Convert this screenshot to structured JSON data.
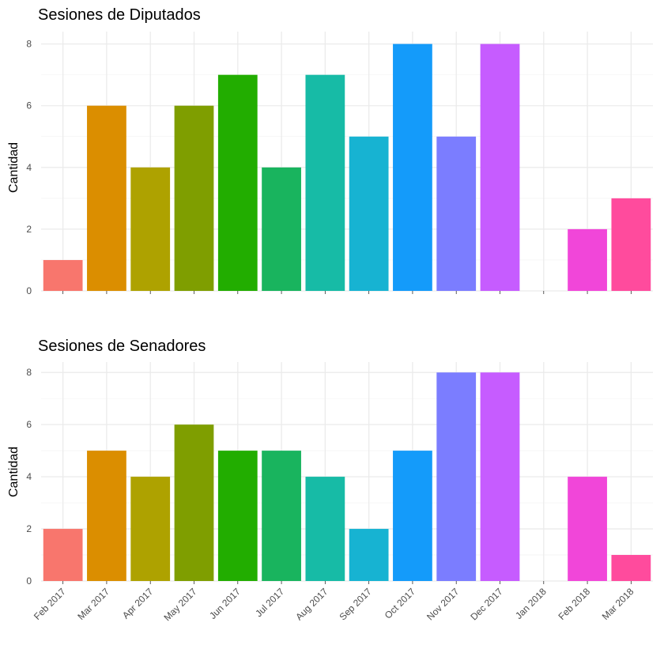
{
  "chart_data": [
    {
      "type": "bar",
      "title": "Sesiones de Diputados",
      "ylabel": "Cantidad",
      "xlabel": "",
      "categories": [
        "Feb 2017",
        "Mar 2017",
        "Apr 2017",
        "May 2017",
        "Jun 2017",
        "Jul 2017",
        "Aug 2017",
        "Sep 2017",
        "Oct 2017",
        "Nov 2017",
        "Dec 2017",
        "Jan 2018",
        "Feb 2018",
        "Mar 2018"
      ],
      "values": [
        1,
        6,
        4,
        6,
        7,
        4,
        7,
        5,
        8,
        5,
        8,
        0,
        2,
        3
      ],
      "ylim": [
        0,
        8.4
      ],
      "yticks": [
        0,
        2,
        4,
        6,
        8
      ],
      "show_xtick_labels": false,
      "grid": true
    },
    {
      "type": "bar",
      "title": "Sesiones de Senadores",
      "ylabel": "Cantidad",
      "xlabel": "",
      "categories": [
        "Feb 2017",
        "Mar 2017",
        "Apr 2017",
        "May 2017",
        "Jun 2017",
        "Jul 2017",
        "Aug 2017",
        "Sep 2017",
        "Oct 2017",
        "Nov 2017",
        "Dec 2017",
        "Jan 2018",
        "Feb 2018",
        "Mar 2018"
      ],
      "values": [
        2,
        5,
        4,
        6,
        5,
        5,
        4,
        2,
        5,
        8,
        8,
        0,
        4,
        1
      ],
      "ylim": [
        0,
        8.4
      ],
      "yticks": [
        0,
        2,
        4,
        6,
        8
      ],
      "show_xtick_labels": true,
      "grid": true
    }
  ],
  "colors": [
    "#F8766D",
    "#DB8E00",
    "#AEA200",
    "#7F9E00",
    "#22AD00",
    "#19B45E",
    "#17BBA6",
    "#17B3D2",
    "#149BFA",
    "#7B7DFF",
    "#C65CFF",
    "#E964CA",
    "#F146D9",
    "#FF4B9D"
  ]
}
